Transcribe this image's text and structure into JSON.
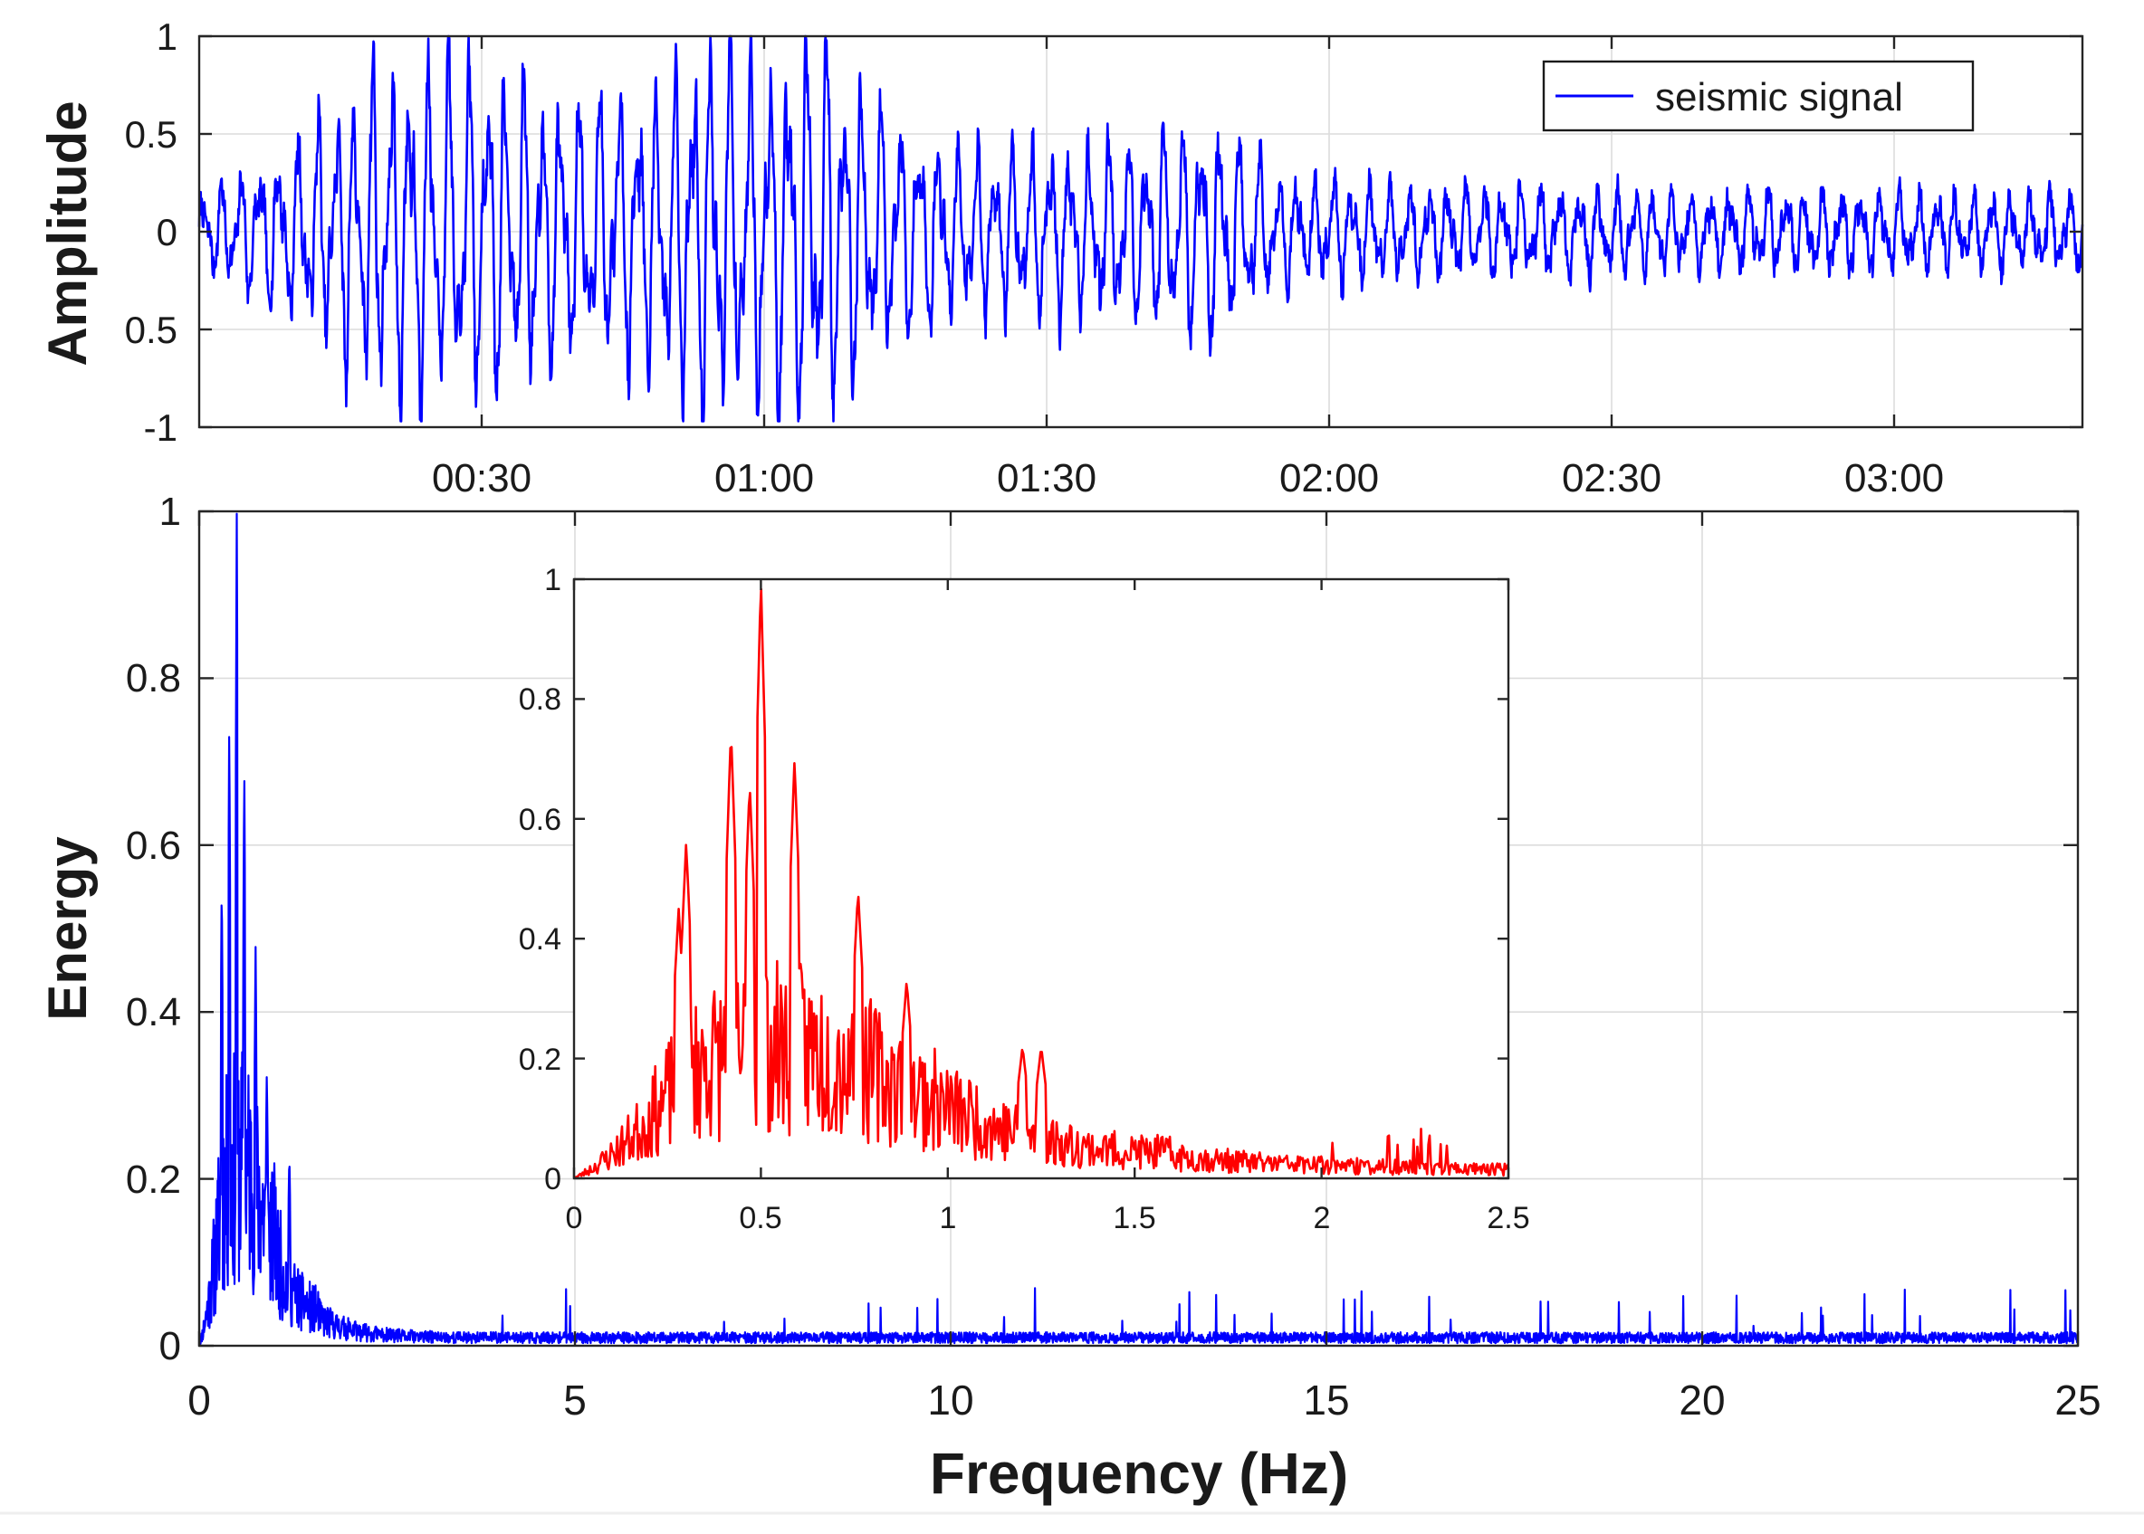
{
  "colors": {
    "signal": "#0000ff",
    "inset": "#ff0000",
    "grid": "#dcdcdc",
    "axis": "#262626"
  },
  "chart_data": [
    {
      "type": "line",
      "ylabel": "Amplitude",
      "xlim": [
        "00:00",
        "03:20"
      ],
      "ylim": [
        -1,
        1
      ],
      "yticks": [
        "1",
        "0.5",
        "0",
        "0.5",
        "-1"
      ],
      "xticks": [
        "00:30",
        "01:00",
        "01:30",
        "02:00",
        "02:30",
        "03:00"
      ],
      "legend": {
        "label": "seismic signal",
        "position": "top-right"
      },
      "grid": true,
      "series": [
        {
          "name": "seismic signal",
          "envelope_t_s": [
            0,
            10,
            18,
            25,
            30,
            40,
            48,
            53,
            60,
            66,
            72,
            80,
            90,
            100,
            107,
            115,
            130,
            160,
            200
          ],
          "envelope_amp": [
            0.18,
            0.42,
            0.8,
            0.88,
            0.82,
            0.65,
            0.72,
            0.95,
            0.9,
            1.0,
            0.62,
            0.42,
            0.42,
            0.45,
            0.58,
            0.28,
            0.22,
            0.2,
            0.18
          ]
        }
      ]
    },
    {
      "type": "line",
      "xlabel": "Frequency (Hz)",
      "ylabel": "Energy",
      "xlim": [
        0,
        25
      ],
      "ylim": [
        0,
        1
      ],
      "xticks": [
        "0",
        "5",
        "10",
        "15",
        "20",
        "25"
      ],
      "yticks": [
        "0",
        "0.2",
        "0.4",
        "0.6",
        "0.8",
        "1"
      ],
      "grid": true,
      "series": [
        {
          "peaks_hz": [
            0.3,
            0.4,
            0.5,
            0.6,
            0.75,
            0.9,
            1.0,
            1.2
          ],
          "peaks_energy": [
            0.56,
            0.75,
            1.0,
            0.7,
            0.48,
            0.33,
            0.22,
            0.23
          ],
          "background_level": 0.012
        }
      ]
    },
    {
      "type": "line",
      "xlim": [
        0,
        2.5
      ],
      "ylim": [
        0,
        1
      ],
      "xticks": [
        "0",
        "0.5",
        "1",
        "1.5",
        "2",
        "2.5"
      ],
      "yticks": [
        "0",
        "0.2",
        "0.4",
        "0.6",
        "0.8",
        "1"
      ],
      "grid": false,
      "series": [
        {
          "peaks_hz": [
            0.28,
            0.3,
            0.42,
            0.47,
            0.5,
            0.59,
            0.76,
            0.89,
            1.2,
            1.25
          ],
          "peaks_energy": [
            0.45,
            0.56,
            0.75,
            0.66,
            1.0,
            0.7,
            0.48,
            0.33,
            0.22,
            0.22
          ],
          "background_level": 0.015
        }
      ]
    }
  ]
}
